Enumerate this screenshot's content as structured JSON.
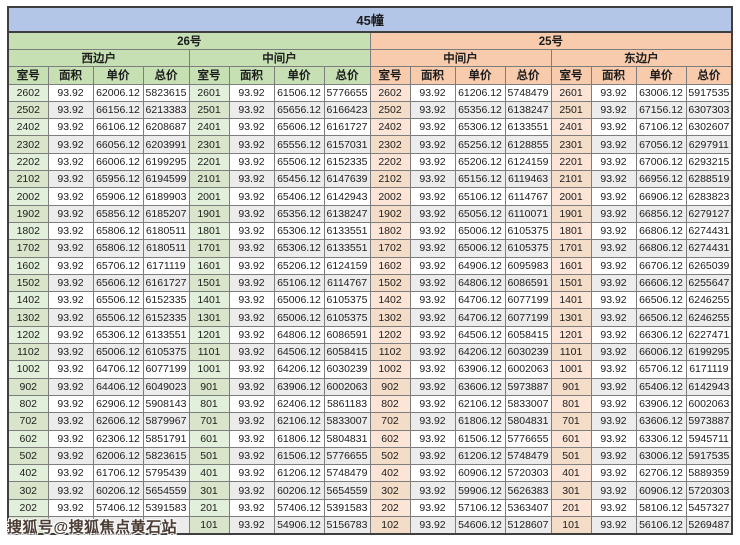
{
  "title": "45幢",
  "watermark": "搜狐号@搜狐焦点黄石站",
  "columns": [
    "室号",
    "面积",
    "单价",
    "总价"
  ],
  "buildings": [
    {
      "label": "26号",
      "theme": "green"
    },
    {
      "label": "25号",
      "theme": "orange"
    }
  ],
  "colors": {
    "title_bg": "#b4c6e7",
    "section_green": "#c6e0b4",
    "room_green": "#e2efda",
    "section_orange": "#f8cbad",
    "room_orange": "#fce4d6",
    "alt_row": "#ececec",
    "border": "#7d7d7d",
    "watermark_text": "#4a3b33"
  },
  "groups": [
    {
      "building": "26号",
      "unit_type": "西边户",
      "theme": "green",
      "rows": [
        [
          "2602",
          "93.92",
          "62006.12",
          "5823615"
        ],
        [
          "2502",
          "93.92",
          "66156.12",
          "6213383"
        ],
        [
          "2402",
          "93.92",
          "66106.12",
          "6208687"
        ],
        [
          "2302",
          "93.92",
          "66056.12",
          "6203991"
        ],
        [
          "2202",
          "93.92",
          "66006.12",
          "6199295"
        ],
        [
          "2102",
          "93.92",
          "65956.12",
          "6194599"
        ],
        [
          "2002",
          "93.92",
          "65906.12",
          "6189903"
        ],
        [
          "1902",
          "93.92",
          "65856.12",
          "6185207"
        ],
        [
          "1802",
          "93.92",
          "65806.12",
          "6180511"
        ],
        [
          "1702",
          "93.92",
          "65806.12",
          "6180511"
        ],
        [
          "1602",
          "93.92",
          "65706.12",
          "6171119"
        ],
        [
          "1502",
          "93.92",
          "65606.12",
          "6161727"
        ],
        [
          "1402",
          "93.92",
          "65506.12",
          "6152335"
        ],
        [
          "1302",
          "93.92",
          "65506.12",
          "6152335"
        ],
        [
          "1202",
          "93.92",
          "65306.12",
          "6133551"
        ],
        [
          "1102",
          "93.92",
          "65006.12",
          "6105375"
        ],
        [
          "1002",
          "93.92",
          "64706.12",
          "6077199"
        ],
        [
          "902",
          "93.92",
          "64406.12",
          "6049023"
        ],
        [
          "802",
          "93.92",
          "62906.12",
          "5908143"
        ],
        [
          "702",
          "93.92",
          "62606.12",
          "5879967"
        ],
        [
          "602",
          "93.92",
          "62306.12",
          "5851791"
        ],
        [
          "502",
          "93.92",
          "62006.12",
          "5823615"
        ],
        [
          "402",
          "93.92",
          "61706.12",
          "5795439"
        ],
        [
          "302",
          "93.92",
          "60206.12",
          "5654559"
        ],
        [
          "202",
          "93.92",
          "57406.12",
          "5391583"
        ],
        [
          "",
          "",
          "",
          "743"
        ]
      ]
    },
    {
      "building": "26号",
      "unit_type": "中间户",
      "theme": "green",
      "rows": [
        [
          "2601",
          "93.92",
          "61506.12",
          "5776655"
        ],
        [
          "2501",
          "93.92",
          "65656.12",
          "6166423"
        ],
        [
          "2401",
          "93.92",
          "65606.12",
          "6161727"
        ],
        [
          "2301",
          "93.92",
          "65556.12",
          "6157031"
        ],
        [
          "2201",
          "93.92",
          "65506.12",
          "6152335"
        ],
        [
          "2101",
          "93.92",
          "65456.12",
          "6147639"
        ],
        [
          "2001",
          "93.92",
          "65406.12",
          "6142943"
        ],
        [
          "1901",
          "93.92",
          "65356.12",
          "6138247"
        ],
        [
          "1801",
          "93.92",
          "65306.12",
          "6133551"
        ],
        [
          "1701",
          "93.92",
          "65306.12",
          "6133551"
        ],
        [
          "1601",
          "93.92",
          "65206.12",
          "6124159"
        ],
        [
          "1501",
          "93.92",
          "65106.12",
          "6114767"
        ],
        [
          "1401",
          "93.92",
          "65006.12",
          "6105375"
        ],
        [
          "1301",
          "93.92",
          "65006.12",
          "6105375"
        ],
        [
          "1201",
          "93.92",
          "64806.12",
          "6086591"
        ],
        [
          "1101",
          "93.92",
          "64506.12",
          "6058415"
        ],
        [
          "1001",
          "93.92",
          "64206.12",
          "6030239"
        ],
        [
          "901",
          "93.92",
          "63906.12",
          "6002063"
        ],
        [
          "801",
          "93.92",
          "62406.12",
          "5861183"
        ],
        [
          "701",
          "93.92",
          "62106.12",
          "5833007"
        ],
        [
          "601",
          "93.92",
          "61806.12",
          "5804831"
        ],
        [
          "501",
          "93.92",
          "61506.12",
          "5776655"
        ],
        [
          "401",
          "93.92",
          "61206.12",
          "5748479"
        ],
        [
          "301",
          "93.92",
          "60206.12",
          "5654559"
        ],
        [
          "201",
          "93.92",
          "57406.12",
          "5391583"
        ],
        [
          "101",
          "93.92",
          "54906.12",
          "5156783"
        ]
      ]
    },
    {
      "building": "25号",
      "unit_type": "中间户",
      "theme": "orange",
      "rows": [
        [
          "2602",
          "93.92",
          "61206.12",
          "5748479"
        ],
        [
          "2502",
          "93.92",
          "65356.12",
          "6138247"
        ],
        [
          "2402",
          "93.92",
          "65306.12",
          "6133551"
        ],
        [
          "2302",
          "93.92",
          "65256.12",
          "6128855"
        ],
        [
          "2202",
          "93.92",
          "65206.12",
          "6124159"
        ],
        [
          "2102",
          "93.92",
          "65156.12",
          "6119463"
        ],
        [
          "2002",
          "93.92",
          "65106.12",
          "6114767"
        ],
        [
          "1902",
          "93.92",
          "65056.12",
          "6110071"
        ],
        [
          "1802",
          "93.92",
          "65006.12",
          "6105375"
        ],
        [
          "1702",
          "93.92",
          "65006.12",
          "6105375"
        ],
        [
          "1602",
          "93.92",
          "64906.12",
          "6095983"
        ],
        [
          "1502",
          "93.92",
          "64806.12",
          "6086591"
        ],
        [
          "1402",
          "93.92",
          "64706.12",
          "6077199"
        ],
        [
          "1302",
          "93.92",
          "64706.12",
          "6077199"
        ],
        [
          "1202",
          "93.92",
          "64506.12",
          "6058415"
        ],
        [
          "1102",
          "93.92",
          "64206.12",
          "6030239"
        ],
        [
          "1002",
          "93.92",
          "63906.12",
          "6002063"
        ],
        [
          "902",
          "93.92",
          "63606.12",
          "5973887"
        ],
        [
          "802",
          "93.92",
          "62106.12",
          "5833007"
        ],
        [
          "702",
          "93.92",
          "61806.12",
          "5804831"
        ],
        [
          "602",
          "93.92",
          "61506.12",
          "5776655"
        ],
        [
          "502",
          "93.92",
          "61206.12",
          "5748479"
        ],
        [
          "402",
          "93.92",
          "60906.12",
          "5720303"
        ],
        [
          "302",
          "93.92",
          "59906.12",
          "5626383"
        ],
        [
          "202",
          "93.92",
          "57106.12",
          "5363407"
        ],
        [
          "102",
          "93.92",
          "54606.12",
          "5128607"
        ]
      ]
    },
    {
      "building": "25号",
      "unit_type": "东边户",
      "theme": "orange",
      "rows": [
        [
          "2601",
          "93.92",
          "63006.12",
          "5917535"
        ],
        [
          "2501",
          "93.92",
          "67156.12",
          "6307303"
        ],
        [
          "2401",
          "93.92",
          "67106.12",
          "6302607"
        ],
        [
          "2301",
          "93.92",
          "67056.12",
          "6297911"
        ],
        [
          "2201",
          "93.92",
          "67006.12",
          "6293215"
        ],
        [
          "2101",
          "93.92",
          "66956.12",
          "6288519"
        ],
        [
          "2001",
          "93.92",
          "66906.12",
          "6283823"
        ],
        [
          "1901",
          "93.92",
          "66856.12",
          "6279127"
        ],
        [
          "1801",
          "93.92",
          "66806.12",
          "6274431"
        ],
        [
          "1701",
          "93.92",
          "66806.12",
          "6274431"
        ],
        [
          "1601",
          "93.92",
          "66706.12",
          "6265039"
        ],
        [
          "1501",
          "93.92",
          "66606.12",
          "6255647"
        ],
        [
          "1401",
          "93.92",
          "66506.12",
          "6246255"
        ],
        [
          "1301",
          "93.92",
          "66506.12",
          "6246255"
        ],
        [
          "1201",
          "93.92",
          "66306.12",
          "6227471"
        ],
        [
          "1101",
          "93.92",
          "66006.12",
          "6199295"
        ],
        [
          "1001",
          "93.92",
          "65706.12",
          "6171119"
        ],
        [
          "901",
          "93.92",
          "65406.12",
          "6142943"
        ],
        [
          "801",
          "93.92",
          "63906.12",
          "6002063"
        ],
        [
          "701",
          "93.92",
          "63606.12",
          "5973887"
        ],
        [
          "601",
          "93.92",
          "63306.12",
          "5945711"
        ],
        [
          "501",
          "93.92",
          "63006.12",
          "5917535"
        ],
        [
          "401",
          "93.92",
          "62706.12",
          "5889359"
        ],
        [
          "301",
          "93.92",
          "60906.12",
          "5720303"
        ],
        [
          "201",
          "93.92",
          "58106.12",
          "5457327"
        ],
        [
          "101",
          "93.92",
          "56106.12",
          "5269487"
        ]
      ]
    }
  ]
}
